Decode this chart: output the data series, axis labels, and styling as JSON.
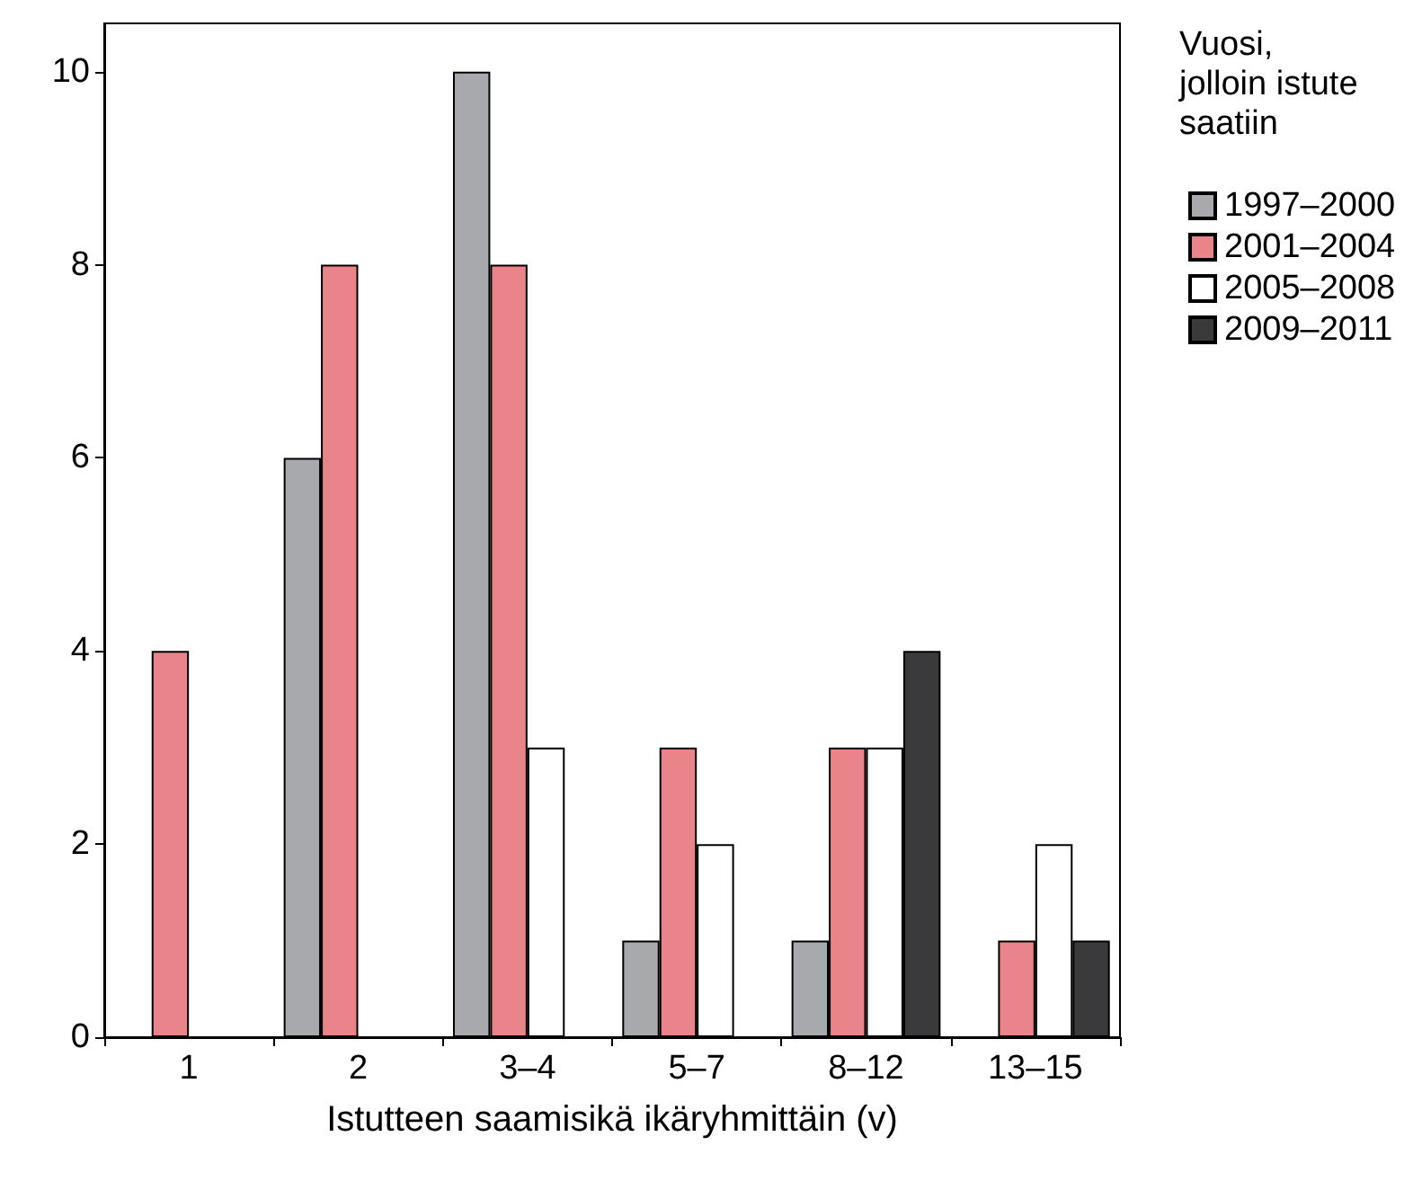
{
  "chart_data": {
    "type": "bar",
    "xlabel": "Istutteen saamisikä ikäryhmittäin (v)",
    "legend_title": "Vuosi,\njolloin istute\nsaatiin",
    "categories": [
      "1",
      "2",
      "3–4",
      "5–7",
      "8–12",
      "13–15"
    ],
    "series": [
      {
        "name": "1997–2000",
        "color": "#a7a9ac",
        "values": [
          null,
          6,
          10,
          1,
          1,
          null
        ]
      },
      {
        "name": "2001–2004",
        "color": "#e8848a",
        "values": [
          4,
          8,
          8,
          3,
          3,
          1
        ]
      },
      {
        "name": "2005–2008",
        "color": "#ffffff",
        "values": [
          null,
          null,
          3,
          2,
          3,
          2
        ]
      },
      {
        "name": "2009–2011",
        "color": "#3a3a3c",
        "values": [
          null,
          null,
          null,
          null,
          4,
          1
        ]
      }
    ],
    "ylim": [
      0,
      10.5
    ],
    "yticks": [
      0,
      2,
      4,
      6,
      8,
      10
    ],
    "grid": false,
    "legend": "right"
  }
}
